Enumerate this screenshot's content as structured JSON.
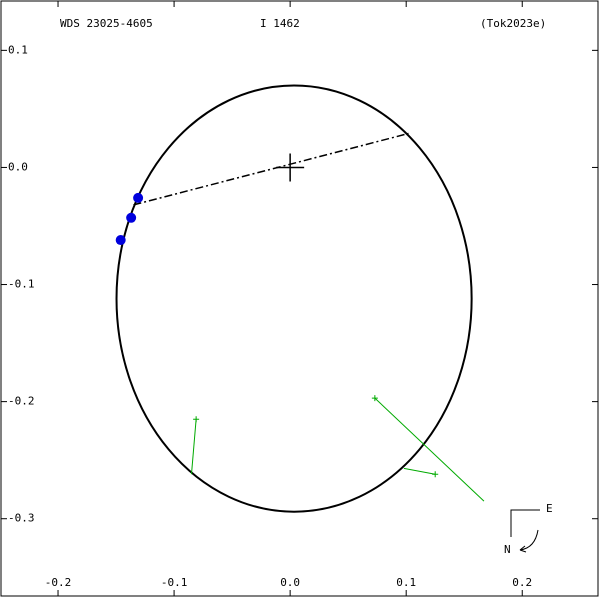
{
  "chart_data": {
    "type": "orbit",
    "header": [
      "WDS 23025-4605",
      "I  1462",
      "(Tok2023e)"
    ],
    "xlim": [
      -0.25,
      0.267
    ],
    "ylim": [
      -0.366,
      0.143
    ],
    "xticks": [
      -0.2,
      -0.1,
      {
        "value": 0,
        "label": "0.0"
      },
      0.1,
      0.2
    ],
    "yticks": [
      0.1,
      {
        "value": 0,
        "label": "0.0"
      },
      -0.1,
      -0.2,
      -0.3
    ],
    "primary": [
      0,
      0
    ],
    "orbit": {
      "center": [
        0.0034,
        -0.112
      ],
      "rx": 0.153,
      "ry": 0.182,
      "color": "#000000"
    },
    "line_of_nodes": {
      "x": [
        -0.135,
        0.102
      ],
      "y": [
        -0.032,
        0.029
      ]
    },
    "measures": {
      "color": "#0000dd",
      "x": [
        -0.131,
        -0.137,
        -0.146
      ],
      "y": [
        -0.026,
        -0.043,
        -0.062
      ]
    },
    "residuals": {
      "color": "#00aa00",
      "x_obs": [
        -0.081,
        0.073,
        0.125
      ],
      "y_obs": [
        -0.215,
        -0.197,
        -0.262
      ],
      "x_orb": [
        -0.085,
        0.167,
        0.098
      ],
      "y_orb": [
        -0.262,
        -0.285,
        -0.257
      ]
    },
    "compass": [
      "E",
      "N"
    ]
  }
}
